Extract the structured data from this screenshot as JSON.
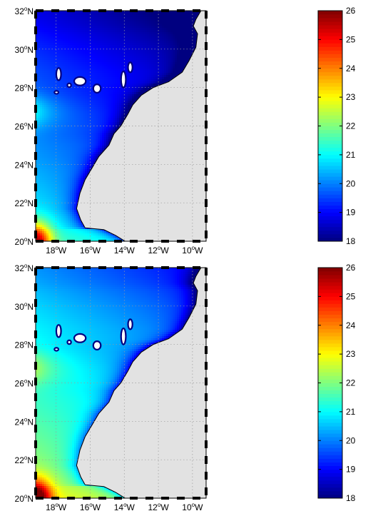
{
  "colors": {
    "land": "#e2e2e2",
    "coast": "#000000",
    "island_fill": "#ffffff",
    "island_edge": "#000080",
    "grid": "#9a9a9a"
  },
  "colormap": "jet",
  "panels": [
    {
      "id": "top",
      "map_label": "SST map top",
      "colorbar_label": "colorbar top",
      "field_bias": 0.0
    },
    {
      "id": "bottom",
      "map_label": "SST map bottom",
      "colorbar_label": "colorbar bottom",
      "field_bias": 1.35
    }
  ],
  "chart_data": {
    "type": "heatmap",
    "title": "",
    "xlabel": "",
    "ylabel": "",
    "xlim": [
      -19.2,
      -9.2
    ],
    "ylim": [
      20,
      32
    ],
    "x_ticks": [
      {
        "value": -18,
        "label": "18",
        "deg": "o",
        "hemi": "W"
      },
      {
        "value": -16,
        "label": "16",
        "deg": "o",
        "hemi": "W"
      },
      {
        "value": -14,
        "label": "14",
        "deg": "o",
        "hemi": "W"
      },
      {
        "value": -12,
        "label": "12",
        "deg": "o",
        "hemi": "W"
      },
      {
        "value": -10,
        "label": "10",
        "deg": "o",
        "hemi": "W"
      }
    ],
    "y_ticks": [
      {
        "value": 20,
        "label": "20",
        "deg": "o",
        "hemi": "N"
      },
      {
        "value": 22,
        "label": "22",
        "deg": "o",
        "hemi": "N"
      },
      {
        "value": 24,
        "label": "24",
        "deg": "o",
        "hemi": "N"
      },
      {
        "value": 26,
        "label": "26",
        "deg": "o",
        "hemi": "N"
      },
      {
        "value": 28,
        "label": "28",
        "deg": "o",
        "hemi": "N"
      },
      {
        "value": 30,
        "label": "30",
        "deg": "o",
        "hemi": "N"
      },
      {
        "value": 32,
        "label": "32",
        "deg": "o",
        "hemi": "N"
      }
    ],
    "colorbar": {
      "range": [
        18,
        26
      ],
      "ticks": [
        "18",
        "19",
        "20",
        "21",
        "22",
        "23",
        "24",
        "25",
        "26"
      ]
    },
    "coastline": [
      [
        -13.95,
        20.0
      ],
      [
        -14.5,
        20.3
      ],
      [
        -15.2,
        20.6
      ],
      [
        -16.3,
        20.7
      ],
      [
        -16.55,
        21.1
      ],
      [
        -16.8,
        21.7
      ],
      [
        -16.6,
        22.5
      ],
      [
        -16.3,
        23.2
      ],
      [
        -15.9,
        23.8
      ],
      [
        -15.5,
        24.4
      ],
      [
        -14.9,
        25.0
      ],
      [
        -14.6,
        25.6
      ],
      [
        -14.2,
        26.0
      ],
      [
        -13.8,
        26.6
      ],
      [
        -13.5,
        27.1
      ],
      [
        -13.0,
        27.6
      ],
      [
        -12.3,
        28.0
      ],
      [
        -11.4,
        28.3
      ],
      [
        -10.6,
        28.8
      ],
      [
        -10.2,
        29.4
      ],
      [
        -9.8,
        30.1
      ],
      [
        -9.7,
        30.8
      ],
      [
        -9.95,
        31.2
      ],
      [
        -9.8,
        31.55
      ],
      [
        -9.5,
        32.0
      ]
    ],
    "islands": [
      {
        "name": "La Palma",
        "lon": -17.85,
        "lat": 28.7,
        "rlon": 0.14,
        "rlat": 0.32
      },
      {
        "name": "El Hierro",
        "lon": -17.98,
        "lat": 27.75,
        "rlon": 0.12,
        "rlat": 0.08
      },
      {
        "name": "La Gomera",
        "lon": -17.23,
        "lat": 28.12,
        "rlon": 0.11,
        "rlat": 0.1
      },
      {
        "name": "Tenerife",
        "lon": -16.6,
        "lat": 28.33,
        "rlon": 0.34,
        "rlat": 0.22
      },
      {
        "name": "Gran Canaria",
        "lon": -15.6,
        "lat": 27.95,
        "rlon": 0.22,
        "rlat": 0.22
      },
      {
        "name": "Fuerteventura",
        "lon": -14.05,
        "lat": 28.42,
        "rlon": 0.14,
        "rlat": 0.42
      },
      {
        "name": "Lanzarote",
        "lon": -13.65,
        "lat": 29.05,
        "rlon": 0.13,
        "rlat": 0.26
      }
    ]
  }
}
